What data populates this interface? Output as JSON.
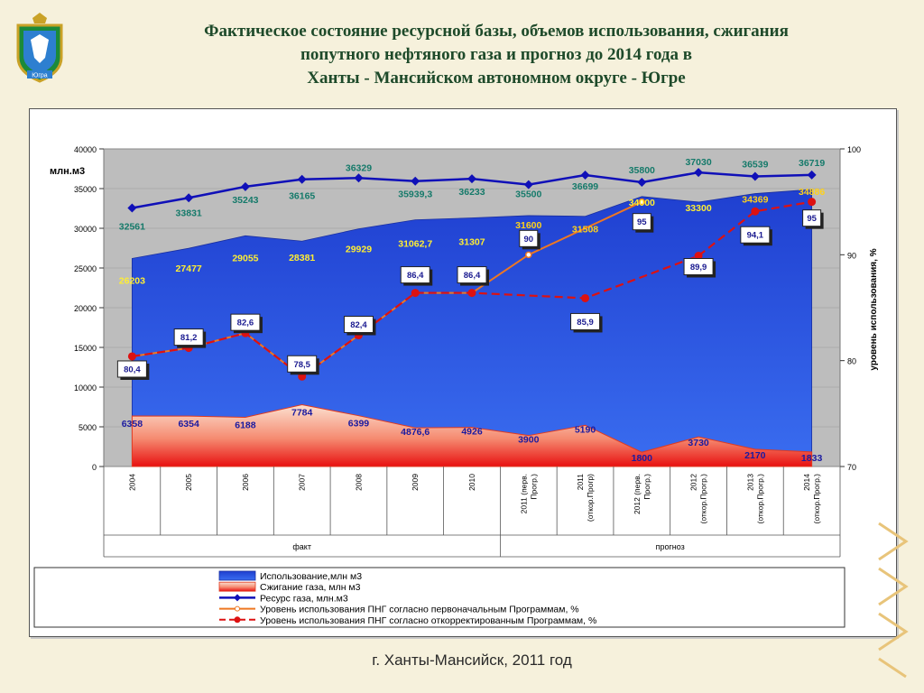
{
  "header": {
    "title_lines": [
      "Фактическое состояние ресурсной базы, объемов использования, сжигания",
      "попутного нефтяного газа и прогноз до 2014 года  в",
      "Ханты - Мансийском автономном округе - Югре"
    ]
  },
  "crest": {
    "label": "Югра"
  },
  "footer": {
    "text": "г. Ханты-Мансийск, 2011 год"
  },
  "chart_data": {
    "type": "area",
    "categories": [
      "2004",
      "2005",
      "2006",
      "2007",
      "2008",
      "2009",
      "2010",
      "2011 (перв. Прогр.)",
      "2011 (откор.Прогр)",
      "2012 (перв. Прогр.)",
      "2012 (откор.Прогр.)",
      "2013 (откор.Прогр.)",
      "2014 (откор.Прогр.)"
    ],
    "category_lines": [
      [
        "2004"
      ],
      [
        "2005"
      ],
      [
        "2006"
      ],
      [
        "2007"
      ],
      [
        "2008"
      ],
      [
        "2009"
      ],
      [
        "2010"
      ],
      [
        "2011 (перв.",
        "Прогр.)"
      ],
      [
        "2011",
        "(откор.Прогр)"
      ],
      [
        "2012 (перв.",
        "Прогр.)"
      ],
      [
        "2012",
        "(откор.Прогр.)"
      ],
      [
        "2013",
        "(откор.Прогр.)"
      ],
      [
        "2014",
        "(откор.Прогр.)"
      ]
    ],
    "groups": [
      {
        "label": "факт",
        "from": 0,
        "to": 6
      },
      {
        "label": "прогноз",
        "from": 7,
        "to": 12
      }
    ],
    "ylabel": "млн.м3",
    "y2label": "уровень использования, %",
    "ylim": [
      0,
      40000
    ],
    "y2lim": [
      70,
      100
    ],
    "yticks": [
      0,
      5000,
      10000,
      15000,
      20000,
      25000,
      30000,
      35000,
      40000
    ],
    "y2ticks": [
      70,
      80,
      90,
      100
    ],
    "colors": {
      "usage": "#2a56dd",
      "burning": "#ee3322",
      "resource": "#1010b8",
      "level_first": "#ee7722",
      "level_corrected": "#dd1111",
      "plot_bg": "#bdbdbd"
    },
    "series": [
      {
        "key": "usage",
        "name": "Использование,млн м3",
        "axis": "left",
        "style": "area",
        "values": [
          26203,
          27477,
          29055,
          28381,
          29929,
          31062.7,
          31307,
          31600,
          31508,
          34000,
          33300,
          34369,
          34886
        ],
        "labels": [
          "26203",
          "27477",
          "29055",
          "28381",
          "29929",
          "31062,7",
          "31307",
          "31600",
          "31508",
          "34000",
          "33300",
          "34369",
          "34886"
        ]
      },
      {
        "key": "burning",
        "name": "Сжигание газа, млн м3",
        "axis": "left",
        "style": "area",
        "values": [
          6358,
          6354,
          6188,
          7784,
          6399,
          4876.6,
          4926,
          3900,
          5190,
          1800,
          3730,
          2170,
          1833
        ],
        "labels": [
          "6358",
          "6354",
          "6188",
          "7784",
          "6399",
          "4876,6",
          "4926",
          "3900",
          "5190",
          "1800",
          "3730",
          "2170",
          "1833"
        ]
      },
      {
        "key": "resource",
        "name": "Ресурс газа, млн.м3",
        "axis": "left",
        "style": "line-diamond",
        "values": [
          32561,
          33831,
          35243,
          36165,
          36329,
          35939.3,
          36233,
          35500,
          36699,
          35800,
          37030,
          36539,
          36719
        ],
        "labels": [
          "32561",
          "33831",
          "35243",
          "36165",
          "36329",
          "35939,3",
          "36233",
          "35500",
          "36699",
          "35800",
          "37030",
          "36539",
          "36719"
        ]
      },
      {
        "key": "level_first",
        "name": "Уровень использования ПНГ согласно первоначальным Программам, %",
        "axis": "right",
        "style": "line-dot",
        "values": [
          80.4,
          81.2,
          82.6,
          78.5,
          82.4,
          86.4,
          86.4,
          90,
          null,
          95,
          null,
          null,
          null
        ]
      },
      {
        "key": "level_corrected",
        "name": "Уровень использования ПНГ согласно откорректированным Программам, %",
        "axis": "right",
        "style": "dashed-dot",
        "values": [
          80.4,
          81.2,
          82.6,
          78.5,
          82.4,
          86.4,
          86.4,
          null,
          85.9,
          null,
          89.9,
          94.1,
          95
        ]
      }
    ],
    "level_callouts": [
      {
        "i": 0,
        "text": "80,4"
      },
      {
        "i": 1,
        "text": "81,2"
      },
      {
        "i": 2,
        "text": "82,6"
      },
      {
        "i": 3,
        "text": "78,5"
      },
      {
        "i": 4,
        "text": "82,4"
      },
      {
        "i": 5,
        "text": "86,4"
      },
      {
        "i": 6,
        "text": "86,4"
      },
      {
        "i": 7,
        "text": "90"
      },
      {
        "i": 8,
        "text": "85,9"
      },
      {
        "i": 9,
        "text": "95"
      },
      {
        "i": 10,
        "text": "89,9"
      },
      {
        "i": 11,
        "text": "94,1"
      },
      {
        "i": 12,
        "text": "95"
      }
    ]
  }
}
